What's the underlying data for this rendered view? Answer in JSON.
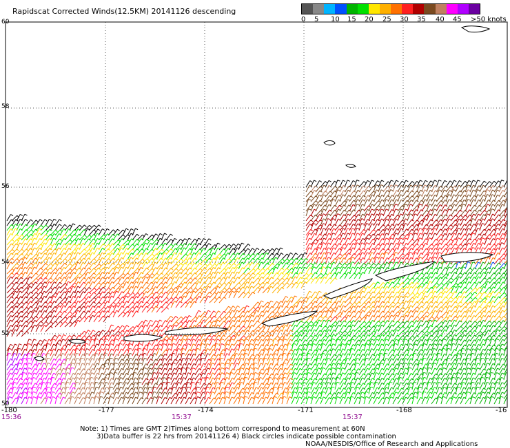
{
  "title": "Rapidscat Corrected Winds(12.5KM) 20141126 descending",
  "legend": {
    "colors": [
      "#555555",
      "#888888",
      "#00b4ff",
      "#0050ff",
      "#00b400",
      "#00e000",
      "#ffe600",
      "#ffb000",
      "#ff7000",
      "#ff2020",
      "#b00000",
      "#7a4a20",
      "#c08060",
      "#ff00ff",
      "#b000ff",
      "#6a00a0"
    ],
    "labels": [
      "0",
      "5",
      "10",
      "15",
      "20",
      "25",
      "30",
      "35",
      "40",
      "45",
      ">50 knots"
    ]
  },
  "axes": {
    "lat_labels": [
      "60",
      "58",
      "56",
      "54",
      "52",
      "50"
    ],
    "lon_labels": [
      "-180",
      "-177",
      "-174",
      "-171",
      "-168",
      "-16"
    ]
  },
  "times": [
    "15:36",
    "15:37",
    "15:37"
  ],
  "footer": {
    "note1": "Note: 1) Times are GMT 2)Times along bottom correspond to measurement at 60N",
    "note2": "3)Data buffer is 22 hrs from 20141126 4) Black circles indicate possible contamination",
    "credit": "NOAA/NESDIS/Office of Research and Applications"
  }
}
